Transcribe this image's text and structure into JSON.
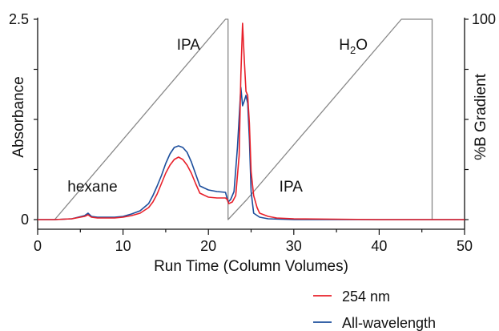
{
  "chart_data": {
    "type": "line",
    "title": "",
    "xlabel": "Run Time (Column Volumes)",
    "ylabel_left": "Absorbance",
    "ylabel_right": "%B Gradient",
    "xlim": [
      0,
      50
    ],
    "ylim_left": [
      0,
      2.5
    ],
    "ylim_right": [
      0,
      100
    ],
    "x_ticks": [
      "0",
      "10",
      "20",
      "30",
      "40",
      "50"
    ],
    "y_left_ticks": [
      "0",
      "2.5"
    ],
    "y_right_ticks": [
      "100"
    ],
    "grid": false,
    "legend_placement": "bottom-right",
    "annotations": [
      {
        "text": "hexane",
        "x": 3.5,
        "y": 0.35
      },
      {
        "text": "IPA",
        "x": 16.3,
        "y": 2.12
      },
      {
        "text": "H",
        "sub": "2",
        "tail": "O",
        "x": 35.3,
        "y": 2.12
      },
      {
        "text": "IPA",
        "x": 28.3,
        "y": 0.35
      }
    ],
    "series": [
      {
        "name": "254 nm",
        "color": "#e8202a",
        "x": [
          0,
          2,
          4,
          5.5,
          5.9,
          6.3,
          7,
          9,
          10,
          11,
          12,
          13,
          13.5,
          14,
          14.5,
          15,
          15.5,
          16,
          16.5,
          17,
          17.5,
          18,
          18.5,
          19,
          20,
          21,
          22,
          22.2,
          22.4,
          22.8,
          23.2,
          23.6,
          23.8,
          24.0,
          24.2,
          24.4,
          24.6,
          24.8,
          25.0,
          25.3,
          25.7,
          26,
          27,
          28,
          30,
          40,
          50
        ],
        "y": [
          0,
          0,
          0.01,
          0.04,
          0.06,
          0.03,
          0.02,
          0.02,
          0.03,
          0.05,
          0.08,
          0.15,
          0.22,
          0.32,
          0.45,
          0.58,
          0.68,
          0.75,
          0.78,
          0.75,
          0.68,
          0.58,
          0.45,
          0.33,
          0.28,
          0.27,
          0.27,
          0.25,
          0.2,
          0.22,
          0.3,
          0.8,
          1.8,
          2.45,
          2.0,
          1.6,
          1.55,
          1.2,
          0.6,
          0.3,
          0.15,
          0.08,
          0.04,
          0.02,
          0.01,
          0,
          0
        ]
      },
      {
        "name": "All-wavelength",
        "color": "#1c4e9c",
        "x": [
          0,
          2,
          4,
          5.5,
          5.9,
          6.3,
          7,
          9,
          10,
          11,
          12,
          13,
          13.5,
          14,
          14.5,
          15,
          15.5,
          16,
          16.5,
          17,
          17.5,
          18,
          18.5,
          19,
          20,
          21,
          22,
          22.1,
          22.3,
          22.6,
          23.0,
          23.4,
          23.8,
          24.0,
          24.2,
          24.4,
          24.6,
          24.8,
          25.0,
          25.3,
          26,
          27,
          30,
          40,
          50
        ],
        "y": [
          0,
          0,
          0.01,
          0.05,
          0.08,
          0.04,
          0.03,
          0.03,
          0.04,
          0.07,
          0.11,
          0.2,
          0.3,
          0.42,
          0.55,
          0.7,
          0.82,
          0.9,
          0.92,
          0.9,
          0.84,
          0.72,
          0.57,
          0.42,
          0.37,
          0.35,
          0.34,
          0.3,
          0.22,
          0.25,
          0.35,
          0.9,
          1.65,
          1.42,
          1.48,
          1.55,
          1.45,
          1.0,
          0.35,
          0.08,
          0.03,
          0.01,
          0,
          0,
          0
        ]
      },
      {
        "name": "%B Gradient",
        "color": "#888888",
        "axis": "right",
        "x": [
          2,
          22,
          22.3,
          22.3,
          24.5,
          42.6,
          46.2,
          46.2
        ],
        "y": [
          0,
          100,
          100,
          0,
          10,
          100,
          100,
          0
        ]
      }
    ],
    "legend": [
      {
        "label": "254 nm",
        "color": "#e8202a"
      },
      {
        "label": "All-wavelength",
        "color": "#1c4e9c"
      }
    ]
  }
}
